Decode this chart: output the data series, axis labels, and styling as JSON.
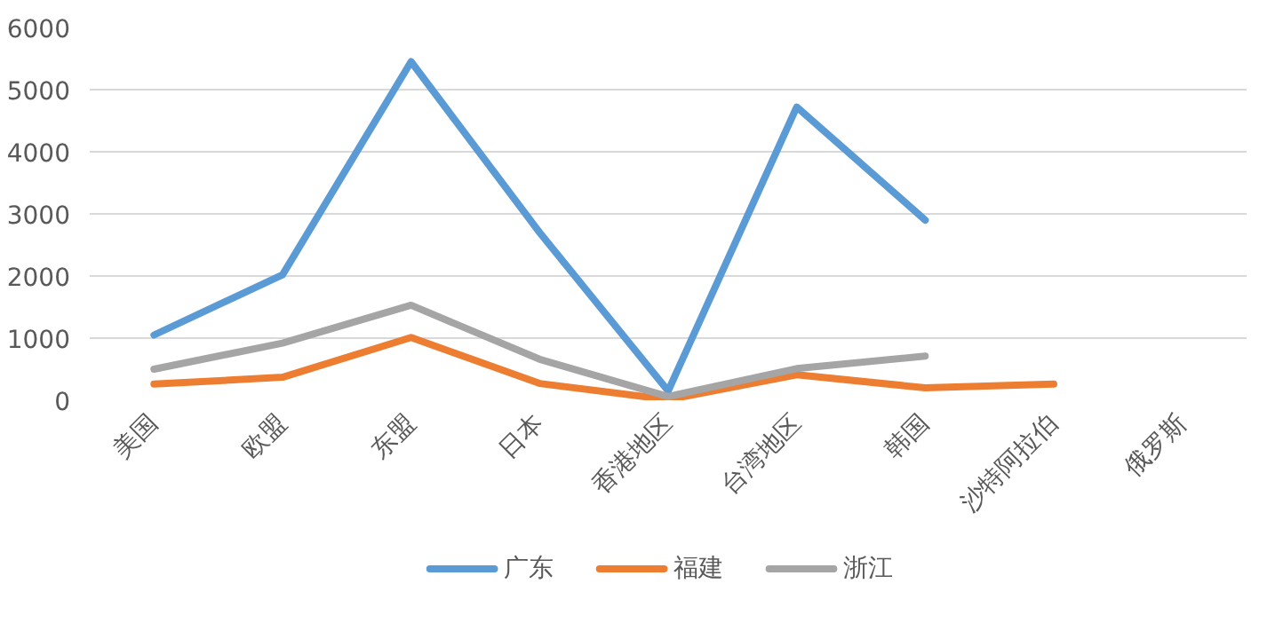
{
  "chart_data": {
    "type": "line",
    "categories": [
      "美国",
      "欧盟",
      "东盟",
      "日本",
      "香港地区",
      "台湾地区",
      "韩国",
      "沙特阿拉伯",
      "俄罗斯"
    ],
    "series": [
      {
        "name": "广东",
        "color": "#5b9bd5",
        "values": [
          1050,
          2020,
          5450,
          2700,
          150,
          4720,
          2900,
          null,
          null
        ]
      },
      {
        "name": "福建",
        "color": "#ed7d31",
        "values": [
          260,
          370,
          1010,
          270,
          10,
          410,
          200,
          260,
          null
        ]
      },
      {
        "name": "浙江",
        "color": "#a5a5a5",
        "values": [
          500,
          920,
          1530,
          660,
          60,
          510,
          710,
          null,
          null
        ]
      }
    ],
    "ylim": [
      0,
      6000
    ],
    "yticks": [
      0,
      1000,
      2000,
      3000,
      4000,
      5000,
      6000
    ],
    "grid": "y",
    "legend": "bottom",
    "marker": "none",
    "line_style": "solid"
  }
}
